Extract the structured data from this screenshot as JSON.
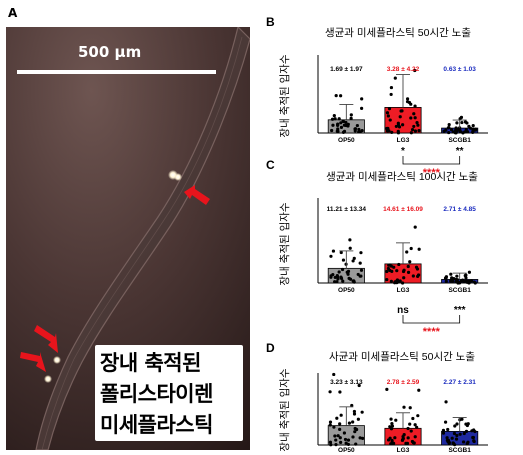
{
  "panel_a": {
    "letter": "A",
    "scale_bar_label": "500 µm",
    "caption_lines": [
      "장내 축적된",
      "폴리스타이렌",
      "미세플라스틱"
    ]
  },
  "chart_data": [
    {
      "type": "bar",
      "letter": "B",
      "title": "생균과 미세플라스틱 50시간 노출",
      "ylabel": "장내 축적된 입자수",
      "categories": [
        "OP50",
        "LG3",
        "SCGB1"
      ],
      "values": [
        1.69,
        3.28,
        0.63
      ],
      "errors": [
        1.97,
        4.22,
        1.03
      ],
      "value_labels": [
        "1.69 ± 1.97",
        "3.28 ± 4.22",
        "0.63 ± 1.03"
      ],
      "colors": [
        "#9a9a9a",
        "#ee1c25",
        "#1f2aa0"
      ],
      "label_colors": [
        "#000000",
        "#e8141c",
        "#1a2bbf"
      ],
      "ylim": [
        0,
        10
      ],
      "significance": [
        {
          "from": 1,
          "to": 2,
          "label": "****",
          "color": "#e8141c"
        },
        {
          "at": 1,
          "label": "*",
          "color": "#000000"
        },
        {
          "at": 2,
          "label": "**",
          "color": "#000000"
        }
      ]
    },
    {
      "type": "bar",
      "letter": "C",
      "title": "생균과 미세플라스틱 100시간 노출",
      "ylabel": "장내 축적된 입자수",
      "categories": [
        "OP50",
        "LG3",
        "SCGB1"
      ],
      "values": [
        11.21,
        14.61,
        2.71
      ],
      "errors": [
        13.34,
        16.09,
        4.85
      ],
      "value_labels": [
        "11.21 ± 13.34",
        "14.61 ± 16.09",
        "2.71 ± 4.85"
      ],
      "colors": [
        "#9a9a9a",
        "#ee1c25",
        "#1f2aa0"
      ],
      "label_colors": [
        "#000000",
        "#e8141c",
        "#1a2bbf"
      ],
      "ylim": [
        0,
        65
      ],
      "significance": [
        {
          "from": 1,
          "to": 2,
          "label": "****",
          "color": "#e8141c"
        },
        {
          "at": 1,
          "label": "ns",
          "color": "#000000"
        },
        {
          "at": 2,
          "label": "***",
          "color": "#000000"
        }
      ]
    },
    {
      "type": "bar",
      "letter": "D",
      "title": "사균과 미세플라스틱 50시간 노출",
      "ylabel": "장내 축적된 입자수",
      "categories": [
        "OP50",
        "LG3",
        "SCGB1"
      ],
      "values": [
        3.23,
        2.78,
        2.27
      ],
      "errors": [
        3.13,
        2.59,
        2.31
      ],
      "value_labels": [
        "3.23 ± 3.13",
        "2.78 ± 2.59",
        "2.27 ± 2.31"
      ],
      "colors": [
        "#9a9a9a",
        "#ee1c25",
        "#1f2aa0"
      ],
      "label_colors": [
        "#000000",
        "#e8141c",
        "#1a2bbf"
      ],
      "ylim": [
        0,
        12
      ],
      "significance": []
    }
  ]
}
